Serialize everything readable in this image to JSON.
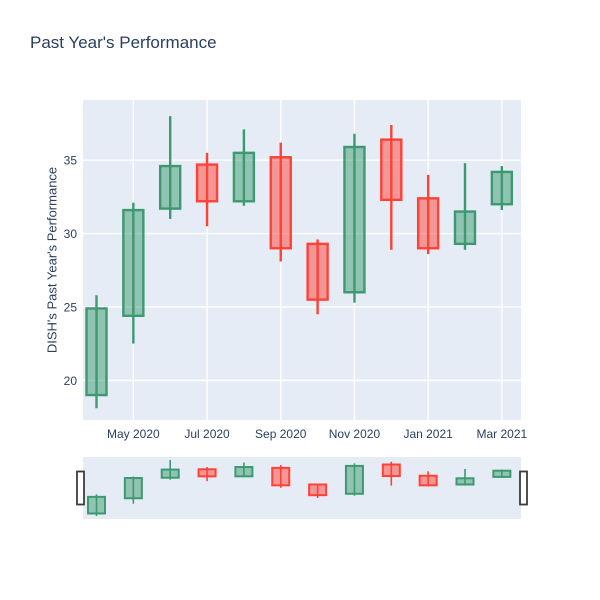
{
  "title": "Past Year's Performance",
  "y_axis": {
    "title": "DISH's Past Year's Performance",
    "ticks": [
      20,
      25,
      30,
      35
    ],
    "range": [
      17.3,
      39.1
    ]
  },
  "x_axis": {
    "tick_labels": [
      "May 2020",
      "Jul 2020",
      "Sep 2020",
      "Nov 2020",
      "Jan 2021",
      "Mar 2021"
    ],
    "tick_positions": [
      1,
      3,
      5,
      7,
      9,
      11
    ]
  },
  "colors": {
    "increasing": "#3D9970",
    "decreasing": "#FF4136",
    "plot_background": "#E5ECF6",
    "grid": "#FFFFFF",
    "text": "#2a3f5f",
    "slider_handle_fill": "#FFFFFF",
    "slider_handle_border": "#3c3c3c"
  },
  "chart_data": {
    "type": "candlestick",
    "x": [
      "Apr 2020",
      "May 2020",
      "Jun 2020",
      "Jul 2020",
      "Aug 2020",
      "Sep 2020",
      "Oct 2020",
      "Nov 2020",
      "Dec 2020",
      "Jan 2021",
      "Feb 2021",
      "Mar 2021"
    ],
    "open": [
      19.0,
      24.4,
      31.7,
      34.7,
      32.2,
      35.2,
      29.3,
      26.0,
      36.4,
      32.4,
      29.3,
      32.0
    ],
    "high": [
      25.8,
      32.1,
      38.0,
      35.5,
      37.1,
      36.2,
      29.6,
      36.8,
      37.4,
      34.0,
      34.8,
      34.6
    ],
    "low": [
      18.1,
      22.5,
      31.0,
      30.5,
      31.9,
      28.1,
      24.5,
      25.3,
      28.9,
      28.6,
      28.9,
      31.6
    ],
    "close": [
      24.9,
      31.6,
      34.6,
      32.2,
      35.5,
      29.0,
      25.5,
      35.9,
      32.3,
      29.0,
      31.5,
      34.2
    ],
    "title": "Past Year's Performance",
    "xlabel": "",
    "ylabel": "DISH's Past Year's Performance",
    "ylim": [
      17.3,
      39.1
    ],
    "grid": true,
    "legend": false,
    "rangeslider": true,
    "rangeslider_range": [
      18.1,
      38.0
    ]
  }
}
